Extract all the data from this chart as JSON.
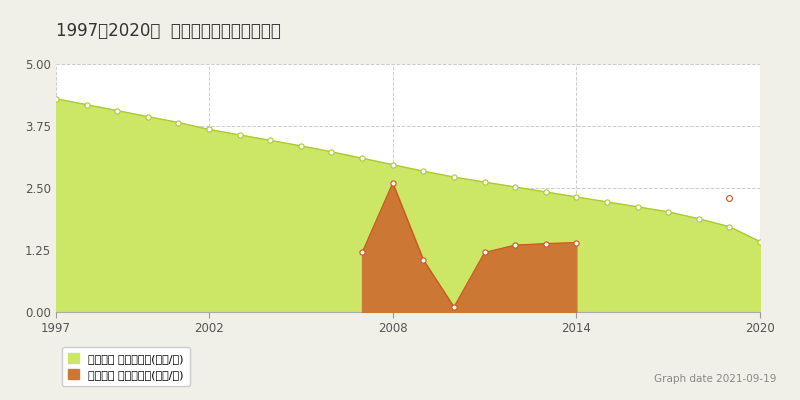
{
  "title": "1997～2020年  樿戸郡月形町の地価推移",
  "background_color": "#f0f0e8",
  "plot_bg_color": "#ffffff",
  "xlim": [
    1997,
    2020
  ],
  "ylim": [
    0,
    5
  ],
  "yticks": [
    0,
    1.25,
    2.5,
    3.75,
    5
  ],
  "xticks": [
    1997,
    2002,
    2008,
    2014,
    2020
  ],
  "graph_date": "Graph date 2021-09-19",
  "legend_label_green": "地価公示 平均坊単価(万円/坊)",
  "legend_label_orange": "取引価格 平均坊単価(万円/坊)",
  "green_color": "#cce666",
  "green_line_color": "#aacc33",
  "orange_color": "#cc7733",
  "orange_line_color": "#cc5522",
  "green_years": [
    1997,
    1998,
    1999,
    2000,
    2001,
    2002,
    2003,
    2004,
    2005,
    2006,
    2007,
    2008,
    2009,
    2010,
    2011,
    2012,
    2013,
    2014,
    2015,
    2016,
    2017,
    2018,
    2019,
    2020
  ],
  "green_values": [
    4.3,
    4.18,
    4.06,
    3.94,
    3.82,
    3.68,
    3.57,
    3.46,
    3.35,
    3.23,
    3.1,
    2.97,
    2.84,
    2.72,
    2.62,
    2.52,
    2.42,
    2.32,
    2.22,
    2.12,
    2.02,
    1.88,
    1.72,
    1.42
  ],
  "orange_years": [
    2007,
    2008,
    2009,
    2010,
    2011,
    2012,
    2013,
    2014
  ],
  "orange_values": [
    1.2,
    2.6,
    1.05,
    0.1,
    1.2,
    1.35,
    1.38,
    1.4
  ],
  "orange_solo_year": 2019,
  "orange_solo_value": 2.3
}
